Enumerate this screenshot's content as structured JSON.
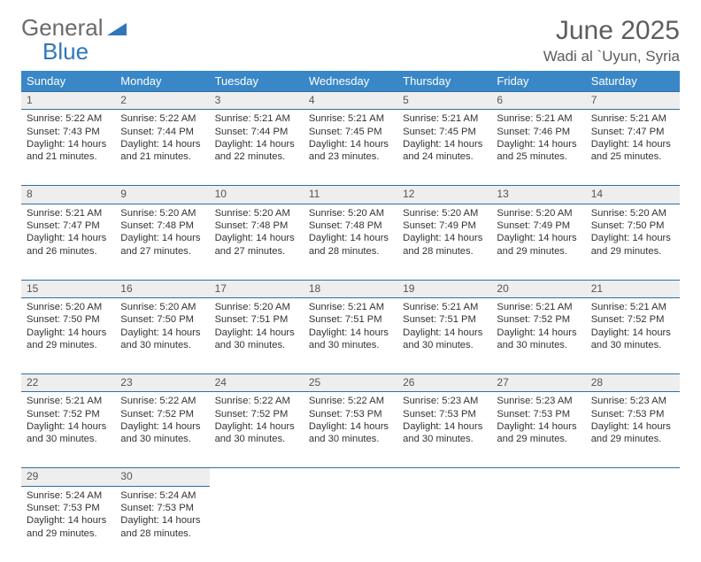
{
  "brand": {
    "line1": "General",
    "line2": "Blue"
  },
  "title": "June 2025",
  "subtitle": "Wadi al `Uyun, Syria",
  "colors": {
    "header_bg": "#3a87c8",
    "header_text": "#ffffff",
    "daynum_bg": "#eeeeee",
    "rule": "#2f6fa3",
    "body_text": "#333333",
    "title_text": "#5d5d5d",
    "logo_gray": "#6b6b6b",
    "logo_blue": "#2f78b7"
  },
  "day_headers": [
    "Sunday",
    "Monday",
    "Tuesday",
    "Wednesday",
    "Thursday",
    "Friday",
    "Saturday"
  ],
  "weeks": [
    [
      {
        "n": "1",
        "sr": "Sunrise: 5:22 AM",
        "ss": "Sunset: 7:43 PM",
        "d1": "Daylight: 14 hours",
        "d2": "and 21 minutes."
      },
      {
        "n": "2",
        "sr": "Sunrise: 5:22 AM",
        "ss": "Sunset: 7:44 PM",
        "d1": "Daylight: 14 hours",
        "d2": "and 21 minutes."
      },
      {
        "n": "3",
        "sr": "Sunrise: 5:21 AM",
        "ss": "Sunset: 7:44 PM",
        "d1": "Daylight: 14 hours",
        "d2": "and 22 minutes."
      },
      {
        "n": "4",
        "sr": "Sunrise: 5:21 AM",
        "ss": "Sunset: 7:45 PM",
        "d1": "Daylight: 14 hours",
        "d2": "and 23 minutes."
      },
      {
        "n": "5",
        "sr": "Sunrise: 5:21 AM",
        "ss": "Sunset: 7:45 PM",
        "d1": "Daylight: 14 hours",
        "d2": "and 24 minutes."
      },
      {
        "n": "6",
        "sr": "Sunrise: 5:21 AM",
        "ss": "Sunset: 7:46 PM",
        "d1": "Daylight: 14 hours",
        "d2": "and 25 minutes."
      },
      {
        "n": "7",
        "sr": "Sunrise: 5:21 AM",
        "ss": "Sunset: 7:47 PM",
        "d1": "Daylight: 14 hours",
        "d2": "and 25 minutes."
      }
    ],
    [
      {
        "n": "8",
        "sr": "Sunrise: 5:21 AM",
        "ss": "Sunset: 7:47 PM",
        "d1": "Daylight: 14 hours",
        "d2": "and 26 minutes."
      },
      {
        "n": "9",
        "sr": "Sunrise: 5:20 AM",
        "ss": "Sunset: 7:48 PM",
        "d1": "Daylight: 14 hours",
        "d2": "and 27 minutes."
      },
      {
        "n": "10",
        "sr": "Sunrise: 5:20 AM",
        "ss": "Sunset: 7:48 PM",
        "d1": "Daylight: 14 hours",
        "d2": "and 27 minutes."
      },
      {
        "n": "11",
        "sr": "Sunrise: 5:20 AM",
        "ss": "Sunset: 7:48 PM",
        "d1": "Daylight: 14 hours",
        "d2": "and 28 minutes."
      },
      {
        "n": "12",
        "sr": "Sunrise: 5:20 AM",
        "ss": "Sunset: 7:49 PM",
        "d1": "Daylight: 14 hours",
        "d2": "and 28 minutes."
      },
      {
        "n": "13",
        "sr": "Sunrise: 5:20 AM",
        "ss": "Sunset: 7:49 PM",
        "d1": "Daylight: 14 hours",
        "d2": "and 29 minutes."
      },
      {
        "n": "14",
        "sr": "Sunrise: 5:20 AM",
        "ss": "Sunset: 7:50 PM",
        "d1": "Daylight: 14 hours",
        "d2": "and 29 minutes."
      }
    ],
    [
      {
        "n": "15",
        "sr": "Sunrise: 5:20 AM",
        "ss": "Sunset: 7:50 PM",
        "d1": "Daylight: 14 hours",
        "d2": "and 29 minutes."
      },
      {
        "n": "16",
        "sr": "Sunrise: 5:20 AM",
        "ss": "Sunset: 7:50 PM",
        "d1": "Daylight: 14 hours",
        "d2": "and 30 minutes."
      },
      {
        "n": "17",
        "sr": "Sunrise: 5:20 AM",
        "ss": "Sunset: 7:51 PM",
        "d1": "Daylight: 14 hours",
        "d2": "and 30 minutes."
      },
      {
        "n": "18",
        "sr": "Sunrise: 5:21 AM",
        "ss": "Sunset: 7:51 PM",
        "d1": "Daylight: 14 hours",
        "d2": "and 30 minutes."
      },
      {
        "n": "19",
        "sr": "Sunrise: 5:21 AM",
        "ss": "Sunset: 7:51 PM",
        "d1": "Daylight: 14 hours",
        "d2": "and 30 minutes."
      },
      {
        "n": "20",
        "sr": "Sunrise: 5:21 AM",
        "ss": "Sunset: 7:52 PM",
        "d1": "Daylight: 14 hours",
        "d2": "and 30 minutes."
      },
      {
        "n": "21",
        "sr": "Sunrise: 5:21 AM",
        "ss": "Sunset: 7:52 PM",
        "d1": "Daylight: 14 hours",
        "d2": "and 30 minutes."
      }
    ],
    [
      {
        "n": "22",
        "sr": "Sunrise: 5:21 AM",
        "ss": "Sunset: 7:52 PM",
        "d1": "Daylight: 14 hours",
        "d2": "and 30 minutes."
      },
      {
        "n": "23",
        "sr": "Sunrise: 5:22 AM",
        "ss": "Sunset: 7:52 PM",
        "d1": "Daylight: 14 hours",
        "d2": "and 30 minutes."
      },
      {
        "n": "24",
        "sr": "Sunrise: 5:22 AM",
        "ss": "Sunset: 7:52 PM",
        "d1": "Daylight: 14 hours",
        "d2": "and 30 minutes."
      },
      {
        "n": "25",
        "sr": "Sunrise: 5:22 AM",
        "ss": "Sunset: 7:53 PM",
        "d1": "Daylight: 14 hours",
        "d2": "and 30 minutes."
      },
      {
        "n": "26",
        "sr": "Sunrise: 5:23 AM",
        "ss": "Sunset: 7:53 PM",
        "d1": "Daylight: 14 hours",
        "d2": "and 30 minutes."
      },
      {
        "n": "27",
        "sr": "Sunrise: 5:23 AM",
        "ss": "Sunset: 7:53 PM",
        "d1": "Daylight: 14 hours",
        "d2": "and 29 minutes."
      },
      {
        "n": "28",
        "sr": "Sunrise: 5:23 AM",
        "ss": "Sunset: 7:53 PM",
        "d1": "Daylight: 14 hours",
        "d2": "and 29 minutes."
      }
    ],
    [
      {
        "n": "29",
        "sr": "Sunrise: 5:24 AM",
        "ss": "Sunset: 7:53 PM",
        "d1": "Daylight: 14 hours",
        "d2": "and 29 minutes."
      },
      {
        "n": "30",
        "sr": "Sunrise: 5:24 AM",
        "ss": "Sunset: 7:53 PM",
        "d1": "Daylight: 14 hours",
        "d2": "and 28 minutes."
      },
      null,
      null,
      null,
      null,
      null
    ]
  ]
}
